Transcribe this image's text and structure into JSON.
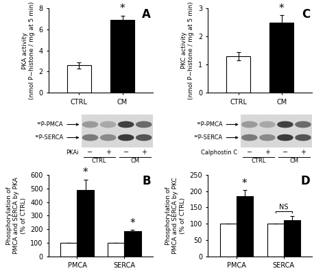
{
  "chart_data": [
    {
      "type": "bar",
      "title": "A",
      "ylabel": "PKA activity\n(nmol P−histone / mg at 5 min)",
      "categories": [
        "CTRL",
        "CM"
      ],
      "values": [
        2.6,
        6.9
      ],
      "errors": [
        0.3,
        0.4
      ],
      "colors": [
        "#ffffff",
        "#000000"
      ],
      "ylim": [
        0,
        8
      ],
      "yticks": [
        0,
        2,
        4,
        6,
        8
      ],
      "annotations": [
        {
          "text": "*",
          "category": "CM"
        }
      ]
    },
    {
      "type": "bar",
      "title": "C",
      "ylabel": "PKC activity\n(nmol P−histone / mg at 5 min)",
      "categories": [
        "CTRL",
        "CM"
      ],
      "values": [
        1.3,
        2.5
      ],
      "errors": [
        0.15,
        0.25
      ],
      "colors": [
        "#ffffff",
        "#000000"
      ],
      "ylim": [
        0,
        3
      ],
      "yticks": [
        0,
        1,
        2,
        3
      ],
      "annotations": [
        {
          "text": "*",
          "category": "CM"
        }
      ]
    },
    {
      "type": "bar",
      "title": "B",
      "ylabel": "Phosphorylation of\nPMCA and SERCA by PKA\n(% of CTRL)",
      "categories": [
        "PMCA",
        "SERCA"
      ],
      "series": [
        {
          "name": "CTRL",
          "color": "#ffffff",
          "values": [
            100,
            100
          ],
          "errors": [
            0,
            0
          ]
        },
        {
          "name": "CM",
          "color": "#000000",
          "values": [
            490,
            185
          ],
          "errors": [
            75,
            10
          ]
        }
      ],
      "ylim": [
        0,
        600
      ],
      "yticks": [
        0,
        100,
        200,
        300,
        400,
        500,
        600
      ],
      "annotations": [
        {
          "text": "*",
          "category": "PMCA",
          "series": "CM"
        },
        {
          "text": "*",
          "category": "SERCA",
          "series": "CM"
        }
      ]
    },
    {
      "type": "bar",
      "title": "D",
      "ylabel": "Phosphorylation of\nPMCA and SERCA by PKC\n(% of CTRL)",
      "categories": [
        "PMCA",
        "SERCA"
      ],
      "series": [
        {
          "name": "CTRL",
          "color": "#ffffff",
          "values": [
            100,
            100
          ],
          "errors": [
            0,
            0
          ]
        },
        {
          "name": "CM",
          "color": "#000000",
          "values": [
            185,
            112
          ],
          "errors": [
            18,
            12
          ]
        }
      ],
      "ylim": [
        0,
        250
      ],
      "yticks": [
        0,
        50,
        100,
        150,
        200,
        250
      ],
      "annotations": [
        {
          "text": "*",
          "category": "PMCA",
          "series": "CM"
        },
        {
          "text": "NS",
          "category": "SERCA",
          "type": "bracket"
        }
      ]
    }
  ],
  "blots": [
    {
      "panel": "B",
      "bands": [
        "³²P-PMCA",
        "³²P-SERCA"
      ],
      "treatment": "PKAi",
      "lanes": [
        "−",
        "+",
        "−",
        "+"
      ],
      "groups": [
        "CTRL",
        "CM"
      ]
    },
    {
      "panel": "D",
      "bands": [
        "³²P-PMCA",
        "³²P-SERCA"
      ],
      "treatment": "Calphostin C",
      "lanes": [
        "−",
        "+",
        "−",
        "+"
      ],
      "groups": [
        "CTRL",
        "CM"
      ]
    }
  ]
}
